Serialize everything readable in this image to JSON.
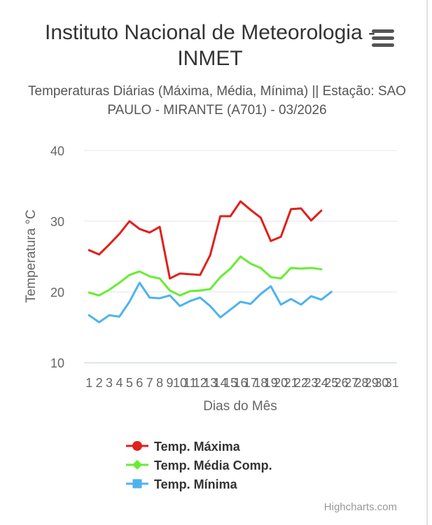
{
  "chart_data": {
    "type": "line",
    "title": "Instituto Nacional de Meteorologia - INMET",
    "subtitle": "Temperaturas Diárias (Máxima, Média, Mínima) || Estação: SAO PAULO - MIRANTE (A701) - 03/2026",
    "xlabel": "Dias do Mês",
    "ylabel": "Temperatura °C",
    "ylim": [
      10,
      40
    ],
    "yticks": [
      10,
      20,
      30,
      40
    ],
    "grid": true,
    "legend": "bottom",
    "categories": [
      "1",
      "2",
      "3",
      "4",
      "5",
      "6",
      "7",
      "8",
      "9",
      "10",
      "11",
      "12",
      "13",
      "14",
      "15",
      "16",
      "17",
      "18",
      "19",
      "20",
      "21",
      "22",
      "23",
      "24",
      "25",
      "26",
      "27",
      "28",
      "29",
      "30",
      "31"
    ],
    "series": [
      {
        "name": "Temp. Máxima",
        "color": "#e0201c",
        "marker": "circle",
        "values": [
          25.9,
          25.3,
          26.7,
          28.2,
          30.0,
          28.9,
          28.4,
          29.2,
          21.9,
          22.6,
          22.5,
          22.4,
          25.2,
          30.7,
          30.7,
          32.8,
          31.6,
          30.5,
          27.2,
          27.8,
          31.7,
          31.8,
          30.1,
          31.5,
          null,
          null,
          null,
          null,
          null,
          null,
          null
        ]
      },
      {
        "name": "Temp. Média Comp.",
        "color": "#66ee33",
        "marker": "diamond",
        "values": [
          19.9,
          19.5,
          20.3,
          21.3,
          22.4,
          22.9,
          22.2,
          21.9,
          20.2,
          19.5,
          20.1,
          20.2,
          20.4,
          22.1,
          23.3,
          25.0,
          24.0,
          23.4,
          22.1,
          21.9,
          23.4,
          23.3,
          23.4,
          23.2,
          null,
          null,
          null,
          null,
          null,
          null,
          null
        ]
      },
      {
        "name": "Temp. Mínima",
        "color": "#4fb2ef",
        "marker": "square",
        "values": [
          16.7,
          15.7,
          16.7,
          16.5,
          18.6,
          21.3,
          19.2,
          19.1,
          19.5,
          18.0,
          18.7,
          19.2,
          18.0,
          16.4,
          17.5,
          18.6,
          18.3,
          19.7,
          20.8,
          18.2,
          19.0,
          18.2,
          19.4,
          18.9,
          20.0,
          null,
          null,
          null,
          null,
          null,
          null
        ]
      }
    ]
  },
  "credits": "Highcharts.com",
  "menu_icon": "hamburger-menu-icon"
}
